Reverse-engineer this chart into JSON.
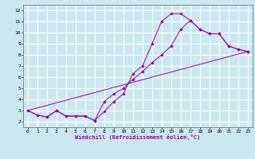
{
  "xlabel": "Windchill (Refroidissement éolien,°C)",
  "bg_color": "#cbe8f0",
  "line_color": "#990099",
  "grid_color": "#ffffff",
  "xlim": [
    -0.5,
    23.5
  ],
  "ylim": [
    1.5,
    12.5
  ],
  "xticks": [
    0,
    1,
    2,
    3,
    4,
    5,
    6,
    7,
    8,
    9,
    10,
    11,
    12,
    13,
    14,
    15,
    16,
    17,
    18,
    19,
    20,
    21,
    22,
    23
  ],
  "yticks": [
    2,
    3,
    4,
    5,
    6,
    7,
    8,
    9,
    10,
    11,
    12
  ],
  "line1_x": [
    0,
    1,
    2,
    3,
    4,
    5,
    6,
    7,
    8,
    9,
    10,
    11,
    12,
    13,
    14,
    15,
    16,
    17,
    18,
    19,
    20,
    21,
    22,
    23
  ],
  "line1_y": [
    3.0,
    2.6,
    2.4,
    3.0,
    2.5,
    2.5,
    2.5,
    2.1,
    2.9,
    3.8,
    4.5,
    6.3,
    7.0,
    9.0,
    11.0,
    11.7,
    11.7,
    11.1,
    10.3,
    9.9,
    9.9,
    8.8,
    8.5,
    8.3
  ],
  "line2_x": [
    0,
    1,
    2,
    3,
    4,
    5,
    6,
    7,
    8,
    9,
    10,
    11,
    12,
    13,
    14,
    15,
    16,
    17,
    18,
    19,
    20,
    21,
    22,
    23
  ],
  "line2_y": [
    3.0,
    2.6,
    2.4,
    3.0,
    2.5,
    2.5,
    2.5,
    2.1,
    3.8,
    4.5,
    5.0,
    5.8,
    6.5,
    7.3,
    8.0,
    8.8,
    10.3,
    11.1,
    10.3,
    9.9,
    9.9,
    8.8,
    8.5,
    8.3
  ],
  "line3_x": [
    0,
    23
  ],
  "line3_y": [
    3.0,
    8.3
  ]
}
